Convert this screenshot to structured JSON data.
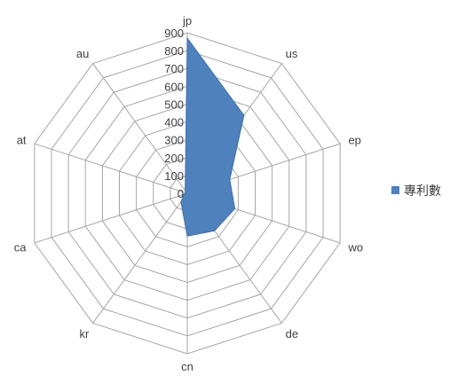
{
  "chart_data": {
    "type": "radar",
    "title": "",
    "categories": [
      "jp",
      "us",
      "ep",
      "wo",
      "de",
      "cn",
      "kr",
      "ca",
      "at",
      "au"
    ],
    "series": [
      {
        "name": "專利數",
        "values": [
          870,
          540,
          250,
          280,
          260,
          240,
          60,
          20,
          10,
          20
        ]
      }
    ],
    "r_ticks": [
      "0",
      "100",
      "200",
      "300",
      "400",
      "500",
      "600",
      "700",
      "800",
      "900"
    ],
    "r_range": [
      0,
      900
    ],
    "legend_position": "right",
    "grid": true,
    "colors": {
      "series": "#4f81bd",
      "grid": "#a6a6a6",
      "text": "#404040"
    }
  }
}
